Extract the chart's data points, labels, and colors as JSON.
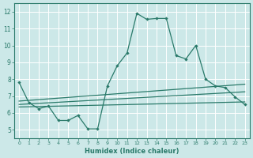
{
  "xlabel": "Humidex (Indice chaleur)",
  "xlim": [
    -0.5,
    23.5
  ],
  "ylim": [
    4.5,
    12.5
  ],
  "xticks": [
    0,
    1,
    2,
    3,
    4,
    5,
    6,
    7,
    8,
    9,
    10,
    11,
    12,
    13,
    14,
    15,
    16,
    17,
    18,
    19,
    20,
    21,
    22,
    23
  ],
  "yticks": [
    5,
    6,
    7,
    8,
    9,
    10,
    11,
    12
  ],
  "background_color": "#cce8e8",
  "grid_color": "#ffffff",
  "line_color": "#2a7a6a",
  "main_x": [
    0,
    1,
    2,
    3,
    4,
    5,
    6,
    7,
    8,
    9,
    10,
    11,
    12,
    13,
    14,
    15,
    16,
    17,
    18,
    19,
    20,
    21,
    22,
    23
  ],
  "main_y": [
    7.8,
    6.6,
    6.25,
    6.4,
    5.55,
    5.55,
    5.85,
    5.05,
    5.05,
    7.6,
    8.8,
    9.55,
    11.9,
    11.55,
    11.6,
    11.6,
    9.4,
    9.2,
    10.0,
    8.0,
    7.6,
    7.5,
    6.95,
    6.5
  ],
  "ref_lines": [
    [
      [
        0,
        23
      ],
      [
        6.7,
        7.7
      ]
    ],
    [
      [
        0,
        23
      ],
      [
        6.5,
        7.25
      ]
    ],
    [
      [
        0,
        23
      ],
      [
        6.35,
        6.65
      ]
    ]
  ]
}
